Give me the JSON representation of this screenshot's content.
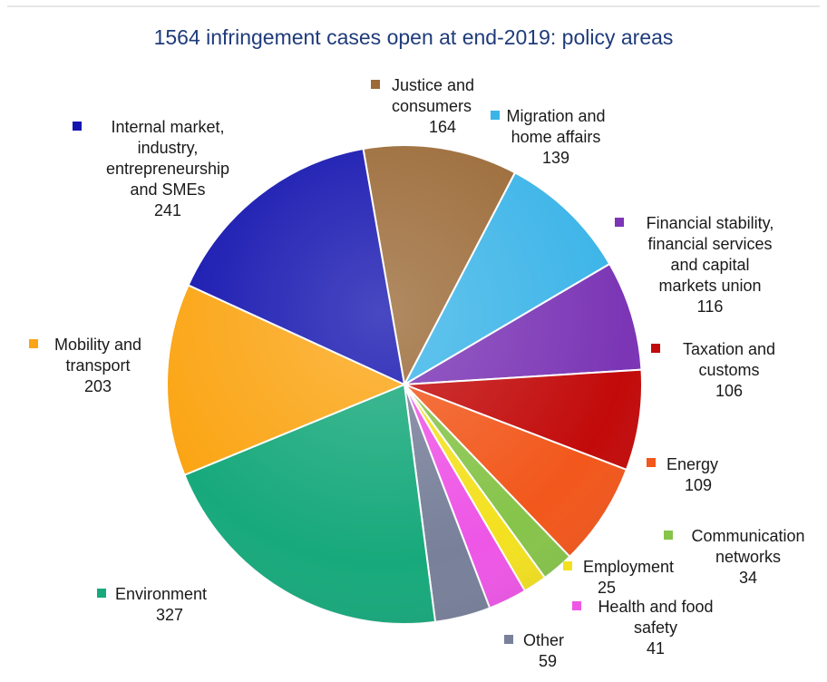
{
  "chart_data": {
    "type": "pie",
    "title": "1564 infringement cases open at end-2019: policy areas",
    "total": 1564,
    "slices": [
      {
        "lines": [
          "Justice and",
          "consumers"
        ],
        "value": 164,
        "color": "#9b6a37"
      },
      {
        "lines": [
          "Migration and",
          "home affairs"
        ],
        "value": 139,
        "color": "#3bb4e8"
      },
      {
        "lines": [
          "Financial stability,",
          "financial services",
          "and capital",
          "markets union"
        ],
        "value": 116,
        "color": "#7b35b5"
      },
      {
        "lines": [
          "Taxation and",
          "customs"
        ],
        "value": 106,
        "color": "#c20a0a"
      },
      {
        "lines": [
          "Energy"
        ],
        "value": 109,
        "color": "#f2571b"
      },
      {
        "lines": [
          "Communication",
          "networks"
        ],
        "value": 34,
        "color": "#86c44a"
      },
      {
        "lines": [
          "Employment"
        ],
        "value": 25,
        "color": "#f3e120"
      },
      {
        "lines": [
          "Health and food",
          "safety"
        ],
        "value": 41,
        "color": "#ee56e6"
      },
      {
        "lines": [
          "Other"
        ],
        "value": 59,
        "color": "#78809a"
      },
      {
        "lines": [
          "Environment"
        ],
        "value": 327,
        "color": "#17a97b"
      },
      {
        "lines": [
          "Mobility and",
          "transport"
        ],
        "value": 203,
        "color": "#fba514"
      },
      {
        "lines": [
          "Internal market,",
          "industry,",
          "entrepreneurship",
          "and SMEs"
        ],
        "value": 241,
        "color": "#1515b0"
      }
    ]
  }
}
